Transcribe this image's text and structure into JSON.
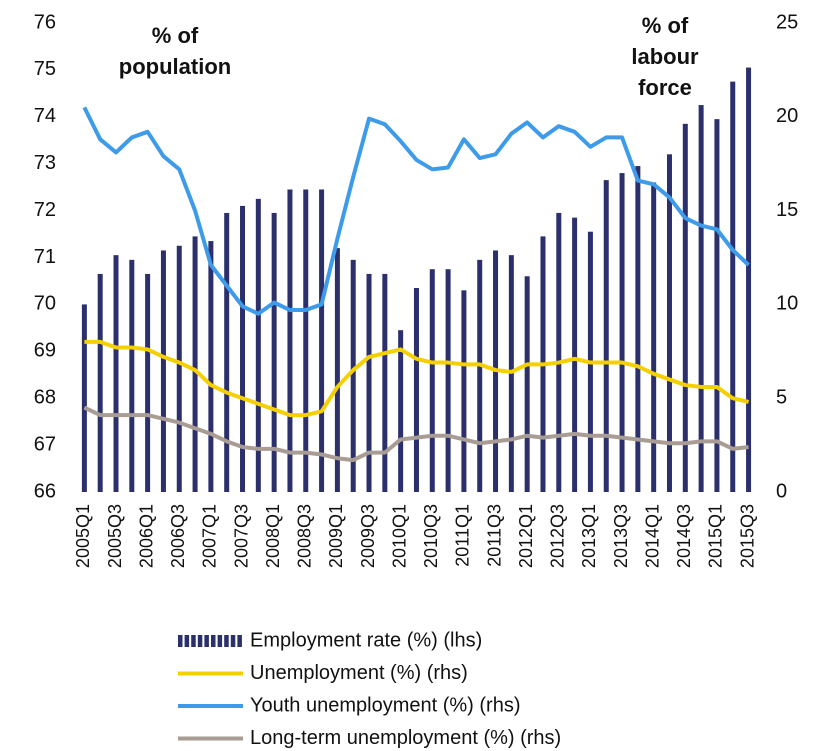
{
  "chart_data": {
    "type": "bar",
    "categories": [
      "2005Q1",
      null,
      "2005Q3",
      null,
      "2006Q1",
      null,
      "2006Q3",
      null,
      "2007Q1",
      null,
      "2007Q3",
      null,
      "2008Q1",
      null,
      "2008Q3",
      null,
      "2009Q1",
      null,
      "2009Q3",
      null,
      "2010Q1",
      null,
      "2010Q3",
      null,
      "2011Q1",
      null,
      "2011Q3",
      null,
      "2012Q1",
      null,
      "2012Q3",
      null,
      "2013Q1",
      null,
      "2013Q3",
      null,
      "2014Q1",
      null,
      "2014Q3",
      null,
      "2015Q1",
      null,
      "2015Q3"
    ],
    "series": [
      {
        "name": "Employment rate (%) (lhs)",
        "type": "bar",
        "color": "#2b2f6b",
        "values": [
          70.0,
          70.65,
          71.05,
          70.95,
          70.65,
          71.15,
          71.25,
          71.45,
          71.35,
          71.95,
          72.1,
          72.25,
          71.95,
          72.45,
          72.45,
          72.45,
          71.2,
          70.95,
          70.65,
          70.65,
          69.45,
          70.35,
          70.75,
          70.75,
          70.3,
          70.95,
          71.15,
          71.05,
          70.6,
          71.45,
          71.95,
          71.85,
          71.55,
          72.65,
          72.8,
          72.95,
          72.6,
          73.2,
          73.85,
          74.25,
          73.95,
          74.75,
          75.05
        ]
      },
      {
        "name": "Unemployment (%) (rhs)",
        "type": "line",
        "axis": "y2",
        "color": "#f5d000",
        "values": [
          8.0,
          8.0,
          7.7,
          7.7,
          7.6,
          7.2,
          6.9,
          6.5,
          5.7,
          5.3,
          5.0,
          4.7,
          4.4,
          4.1,
          4.1,
          4.3,
          5.6,
          6.5,
          7.2,
          7.4,
          7.6,
          7.1,
          6.9,
          6.9,
          6.8,
          6.8,
          6.5,
          6.4,
          6.8,
          6.8,
          6.9,
          7.1,
          6.9,
          6.9,
          6.9,
          6.7,
          6.3,
          6.0,
          5.7,
          5.6,
          5.6,
          5.0,
          4.8
        ]
      },
      {
        "name": "Youth unemployment (%) (rhs)",
        "type": "line",
        "axis": "y2",
        "color": "#3d9be9",
        "values": [
          20.5,
          18.8,
          18.1,
          18.9,
          19.2,
          17.9,
          17.2,
          15.0,
          12.1,
          11.0,
          9.9,
          9.5,
          10.1,
          9.7,
          9.7,
          10.0,
          13.5,
          16.8,
          19.9,
          19.6,
          18.7,
          17.7,
          17.2,
          17.3,
          18.8,
          17.8,
          18.0,
          19.1,
          19.7,
          18.9,
          19.5,
          19.2,
          18.4,
          18.9,
          18.9,
          16.6,
          16.4,
          15.7,
          14.6,
          14.2,
          14.0,
          12.9,
          12.1
        ]
      },
      {
        "name": "Long-term unemployment (%) (rhs)",
        "type": "line",
        "axis": "y2",
        "color": "#a89c94",
        "values": [
          4.5,
          4.1,
          4.1,
          4.1,
          4.1,
          3.9,
          3.7,
          3.4,
          3.1,
          2.7,
          2.4,
          2.3,
          2.3,
          2.1,
          2.1,
          2.0,
          1.8,
          1.7,
          2.1,
          2.1,
          2.8,
          2.9,
          3.0,
          3.0,
          2.8,
          2.6,
          2.7,
          2.8,
          3.0,
          2.9,
          3.0,
          3.1,
          3.0,
          3.0,
          2.9,
          2.8,
          2.7,
          2.6,
          2.6,
          2.7,
          2.7,
          2.3,
          2.4
        ]
      }
    ],
    "ylim": [
      66,
      76
    ],
    "yticks": [
      66,
      67,
      68,
      69,
      70,
      71,
      72,
      73,
      74,
      75,
      76
    ],
    "y2lim": [
      0,
      25
    ],
    "y2ticks": [
      0,
      5,
      10,
      15,
      20,
      25
    ],
    "annotations": [
      [
        "% of",
        "population"
      ],
      [
        "% of",
        "labour",
        "force"
      ]
    ],
    "legend": "bottom"
  }
}
